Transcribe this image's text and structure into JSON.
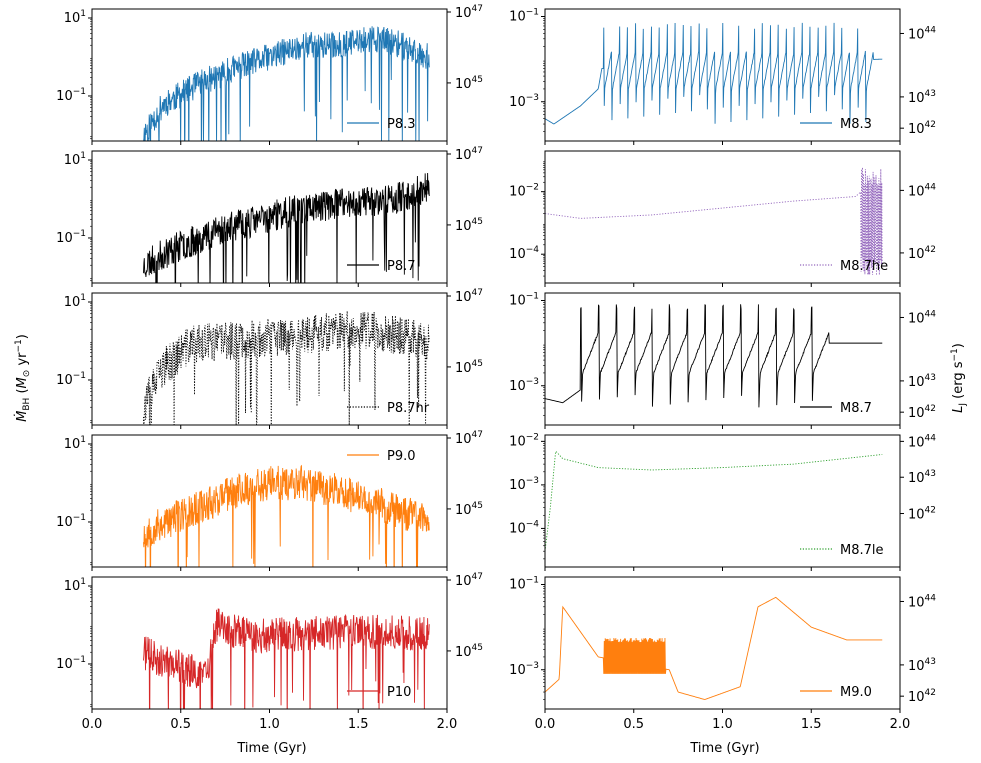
{
  "figure": {
    "left_ylabel": "Ṁ_BH (M⊙ yr⁻¹)",
    "right_ylabel": "L_J (erg s⁻¹)",
    "xlabel": "Time (Gyr)",
    "xticks": [
      "0.0",
      "0.5",
      "1.0",
      "1.5",
      "2.0"
    ]
  },
  "chart_data": [
    {
      "type": "line",
      "panel": "left-1",
      "legend": "P8.3",
      "line_style": "solid",
      "color": "#1f77b4",
      "xlim": [
        0.0,
        2.0
      ],
      "x_range": [
        0.29,
        1.9
      ],
      "yscale": "log",
      "ylim": [
        0.007,
        17
      ],
      "yticks": [
        {
          "v": 10,
          "base": "10",
          "exp": "1"
        },
        {
          "v": 0.1,
          "base": "10",
          "exp": "−1"
        }
      ],
      "ytick_right": [
        {
          "exp": "47"
        },
        {
          "exp": "45"
        }
      ],
      "x_anchors": [
        0.29,
        0.4,
        0.6,
        0.8,
        1.0,
        1.2,
        1.4,
        1.6,
        1.75,
        1.9
      ],
      "y_anchors": [
        0.01,
        0.06,
        0.2,
        0.5,
        1.0,
        2.0,
        2.0,
        3.0,
        2.0,
        1.0
      ],
      "noise_dex": 0.35,
      "seed": 11
    },
    {
      "type": "line",
      "panel": "left-2",
      "legend": "P8.7",
      "line_style": "solid",
      "color": "#000000",
      "xlim": [
        0.0,
        2.0
      ],
      "x_range": [
        0.29,
        1.9
      ],
      "yscale": "log",
      "ylim": [
        0.007,
        17
      ],
      "yticks": [
        {
          "v": 10,
          "base": "10",
          "exp": "1"
        },
        {
          "v": 0.1,
          "base": "10",
          "exp": "−1"
        }
      ],
      "ytick_right": [
        {
          "exp": "47"
        },
        {
          "exp": "45"
        }
      ],
      "x_anchors": [
        0.29,
        0.45,
        0.7,
        0.95,
        1.2,
        1.45,
        1.7,
        1.9
      ],
      "y_anchors": [
        0.02,
        0.05,
        0.15,
        0.3,
        0.6,
        0.8,
        1.0,
        2.0
      ],
      "noise_dex": 0.4,
      "seed": 23
    },
    {
      "type": "line",
      "panel": "left-3",
      "legend": "P8.7hr",
      "line_style": "dotted",
      "color": "#000000",
      "xlim": [
        0.0,
        2.0
      ],
      "x_range": [
        0.29,
        1.9
      ],
      "yscale": "log",
      "ylim": [
        0.007,
        17
      ],
      "yticks": [
        {
          "v": 10,
          "base": "10",
          "exp": "1"
        },
        {
          "v": 0.1,
          "base": "10",
          "exp": "−1"
        }
      ],
      "ytick_right": [
        {
          "exp": "47"
        },
        {
          "exp": "45"
        }
      ],
      "x_anchors": [
        0.29,
        0.4,
        0.55,
        0.75,
        1.0,
        1.25,
        1.5,
        1.7,
        1.9
      ],
      "y_anchors": [
        0.02,
        0.2,
        0.8,
        1.0,
        1.2,
        1.5,
        2.0,
        1.5,
        1.0
      ],
      "noise_dex": 0.5,
      "seed": 37
    },
    {
      "type": "line",
      "panel": "left-4",
      "legend": "P9.0",
      "line_style": "solid",
      "color": "#ff7f0e",
      "xlim": [
        0.0,
        2.0
      ],
      "x_range": [
        0.29,
        1.9
      ],
      "yscale": "log",
      "ylim": [
        0.007,
        17
      ],
      "yticks": [
        {
          "v": 10,
          "base": "10",
          "exp": "1"
        },
        {
          "v": 0.1,
          "base": "10",
          "exp": "−1"
        }
      ],
      "ytick_right": [
        {
          "exp": "47"
        },
        {
          "exp": "45"
        }
      ],
      "x_anchors": [
        0.29,
        0.5,
        0.8,
        1.0,
        1.2,
        1.4,
        1.6,
        1.9
      ],
      "y_anchors": [
        0.05,
        0.15,
        0.6,
        1.0,
        1.0,
        0.6,
        0.3,
        0.1
      ],
      "noise_dex": 0.45,
      "seed": 53
    },
    {
      "type": "line",
      "panel": "left-5",
      "legend": "P10",
      "line_style": "solid",
      "color": "#d62728",
      "xlim": [
        0.0,
        2.0
      ],
      "x_range": [
        0.29,
        1.9
      ],
      "yscale": "log",
      "ylim": [
        0.007,
        17
      ],
      "yticks": [
        {
          "v": 10,
          "base": "10",
          "exp": "1"
        },
        {
          "v": 0.1,
          "base": "10",
          "exp": "−1"
        }
      ],
      "ytick_right": [
        {
          "exp": "47"
        },
        {
          "exp": "45"
        }
      ],
      "x_anchors": [
        0.29,
        0.45,
        0.65,
        0.7,
        0.9,
        1.2,
        1.5,
        1.9
      ],
      "y_anchors": [
        0.2,
        0.1,
        0.05,
        1.0,
        0.5,
        0.6,
        0.7,
        0.6
      ],
      "noise_dex": 0.45,
      "seed": 71
    },
    {
      "type": "line",
      "panel": "right-1",
      "legend": "M8.3",
      "line_style": "solid",
      "color": "#1f77b4",
      "xlim": [
        0.0,
        2.0
      ],
      "x_range": [
        0.0,
        1.9
      ],
      "yscale": "log",
      "ylim": [
        0.00012,
        0.15
      ],
      "yticks": [
        {
          "v": 0.1,
          "base": "10",
          "exp": "−1"
        },
        {
          "v": 0.001,
          "base": "10",
          "exp": "−3"
        }
      ],
      "ytick_right": [
        {
          "v": 0.04,
          "exp": "44"
        },
        {
          "v": 0.0013,
          "exp": "43"
        },
        {
          "v": 0.00024,
          "exp": "42"
        }
      ],
      "x_anchors": [
        0.0,
        0.05,
        0.2,
        0.3,
        0.32,
        1.9
      ],
      "y_anchors": [
        0.0004,
        0.0003,
        0.0008,
        0.002,
        0.006,
        0.01
      ],
      "spikes": {
        "start": 0.33,
        "end": 1.85,
        "count": 34,
        "peak": 0.06,
        "trough": 0.0003
      },
      "seed": 5
    },
    {
      "type": "line",
      "panel": "right-2",
      "legend": "M8.7he",
      "line_style": "dotted",
      "color": "#9467bd",
      "xlim": [
        0.0,
        2.0
      ],
      "x_range": [
        0.0,
        1.9
      ],
      "yscale": "log",
      "ylim": [
        1.2e-05,
        0.2
      ],
      "yticks": [
        {
          "v": 0.01,
          "base": "10",
          "exp": "−2"
        },
        {
          "v": 0.0001,
          "base": "10",
          "exp": "−4"
        }
      ],
      "ytick_right": [
        {
          "v": 0.011,
          "exp": "44"
        },
        {
          "v": 0.00011,
          "exp": "42"
        }
      ],
      "x_anchors": [
        0.0,
        0.2,
        0.6,
        1.0,
        1.4,
        1.75,
        1.78
      ],
      "y_anchors": [
        0.002,
        0.0014,
        0.0018,
        0.003,
        0.005,
        0.007,
        0.01
      ],
      "burst": {
        "start": 1.78,
        "end": 1.9,
        "low": 2e-05,
        "high": 0.06
      },
      "seed": 9
    },
    {
      "type": "line",
      "panel": "right-3",
      "legend": "M8.7",
      "line_style": "solid",
      "color": "#000000",
      "xlim": [
        0.0,
        2.0
      ],
      "x_range": [
        0.0,
        1.9
      ],
      "yscale": "log",
      "ylim": [
        0.00012,
        0.15
      ],
      "yticks": [
        {
          "v": 0.1,
          "base": "10",
          "exp": "−1"
        },
        {
          "v": 0.001,
          "base": "10",
          "exp": "−3"
        }
      ],
      "ytick_right": [
        {
          "v": 0.04,
          "exp": "44"
        },
        {
          "v": 0.0013,
          "exp": "43"
        },
        {
          "v": 0.00024,
          "exp": "42"
        }
      ],
      "x_anchors": [
        0.0,
        0.1,
        0.2,
        1.6,
        1.9
      ],
      "y_anchors": [
        0.0005,
        0.0004,
        0.0008,
        0.01,
        0.01
      ],
      "spikes": {
        "start": 0.2,
        "end": 1.6,
        "count": 14,
        "peak": 0.07,
        "trough": 0.0003
      },
      "seed": 13
    },
    {
      "type": "line",
      "panel": "right-4",
      "legend": "M8.7le",
      "line_style": "dotted",
      "color": "#2ca02c",
      "xlim": [
        0.0,
        2.0
      ],
      "x_range": [
        0.0,
        1.9
      ],
      "yscale": "log",
      "ylim": [
        1.3e-05,
        0.014
      ],
      "yticks": [
        {
          "v": 0.01,
          "base": "10",
          "exp": "−2"
        },
        {
          "v": 0.001,
          "base": "10",
          "exp": "−3"
        },
        {
          "v": 0.0001,
          "base": "10",
          "exp": "−4"
        }
      ],
      "ytick_right": [
        {
          "v": 0.01,
          "exp": "44"
        },
        {
          "v": 0.0015,
          "exp": "43"
        },
        {
          "v": 0.00022,
          "exp": "42"
        }
      ],
      "x_anchors": [
        0.0,
        0.03,
        0.06,
        0.1,
        0.3,
        0.6,
        1.0,
        1.4,
        1.9
      ],
      "y_anchors": [
        3e-05,
        0.0003,
        0.006,
        0.004,
        0.0025,
        0.0022,
        0.0025,
        0.003,
        0.005
      ],
      "seed": 17
    },
    {
      "type": "line",
      "panel": "right-5",
      "legend": "M9.0",
      "line_style": "solid",
      "color": "#ff7f0e",
      "xlim": [
        0.0,
        2.0
      ],
      "x_range": [
        0.0,
        1.9
      ],
      "yscale": "log",
      "ylim": [
        0.00012,
        0.15
      ],
      "yticks": [
        {
          "v": 0.1,
          "base": "10",
          "exp": "−1"
        },
        {
          "v": 0.001,
          "base": "10",
          "exp": "−3"
        }
      ],
      "ytick_right": [
        {
          "v": 0.04,
          "exp": "44"
        },
        {
          "v": 0.0013,
          "exp": "43"
        },
        {
          "v": 0.00024,
          "exp": "42"
        }
      ],
      "x_anchors": [
        0.0,
        0.08,
        0.1,
        0.3,
        0.7,
        0.75,
        0.9,
        1.1,
        1.2,
        1.3,
        1.5,
        1.7,
        1.9
      ],
      "y_anchors": [
        0.0003,
        0.0006,
        0.03,
        0.002,
        0.001,
        0.0003,
        0.0002,
        0.0004,
        0.03,
        0.05,
        0.01,
        0.005,
        0.005
      ],
      "band": {
        "start": 0.33,
        "end": 0.68,
        "low": 0.0008,
        "high": 0.005
      },
      "seed": 29
    }
  ]
}
